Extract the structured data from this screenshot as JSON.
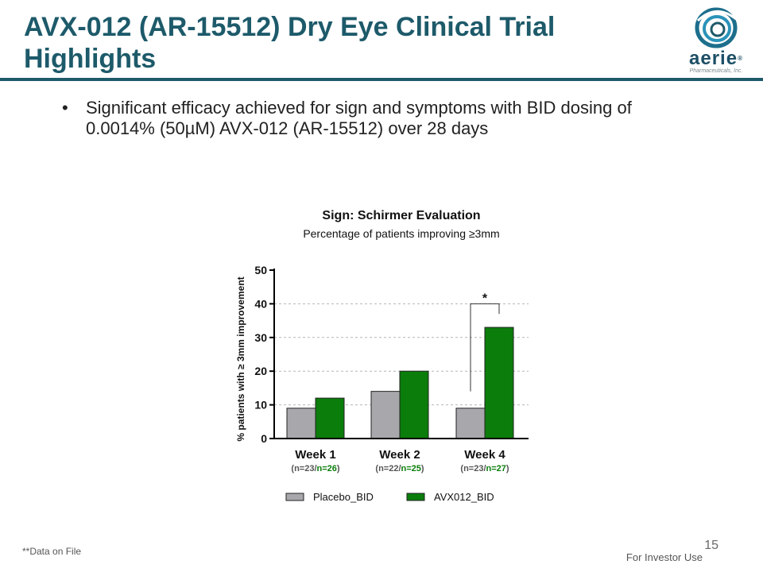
{
  "slide": {
    "title": "AVX-012 (AR-15512) Dry Eye Clinical Trial Highlights",
    "bullet_marker": "•",
    "bullet": "Significant efficacy achieved for sign and symptoms with BID dosing of 0.0014% (50µM) AVX-012 (AR-15512) over 28 days",
    "footnote": "**Data on File",
    "page_number": "15",
    "confidential": "For Investor Use",
    "logo": {
      "text": "aerie",
      "registered": "®",
      "subtitle": "Pharmaceuticals, Inc.",
      "icon": "aerie-swirl-icon"
    }
  },
  "chart_data": {
    "type": "bar",
    "title": "Sign: Schirmer Evaluation",
    "subtitle": "Percentage of patients improving ≥3mm",
    "ylabel": "% patients with ≥ 3mm improvement",
    "xlabel": "",
    "ylim": [
      0,
      50
    ],
    "yticks": [
      0,
      10,
      20,
      30,
      40,
      50
    ],
    "gridlines": [
      10,
      20,
      30,
      40
    ],
    "categories": [
      "Week 1",
      "Week 2",
      "Week 4"
    ],
    "n_placebo": [
      "(n=23/",
      "(n=22/",
      "(n=23/"
    ],
    "n_avx": [
      "n=26",
      "n=25",
      "n=27"
    ],
    "n_close": [
      ")",
      ")",
      ")"
    ],
    "series": [
      {
        "name": "Placebo_BID",
        "color": "#a8a8ac",
        "values": [
          9,
          14,
          9
        ]
      },
      {
        "name": "AVX012_BID",
        "color": "#0b7d0b",
        "values": [
          12,
          20,
          33
        ]
      }
    ],
    "annotations": [
      {
        "text": "*",
        "category": "Week 4",
        "type": "significance-bracket"
      }
    ],
    "legend_position": "bottom"
  }
}
